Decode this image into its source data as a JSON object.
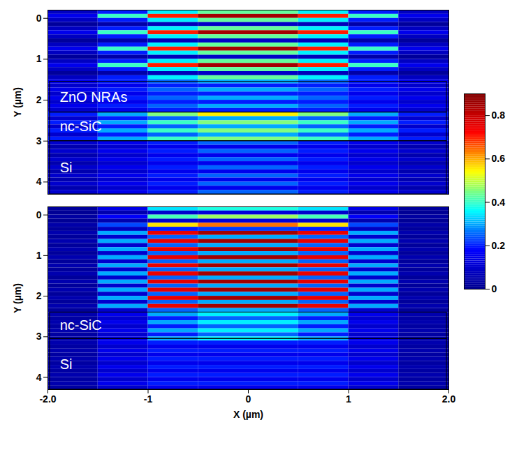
{
  "chart_data": [
    {
      "type": "heatmap",
      "y_label": "Y (µm)",
      "tick_labels": "y",
      "xlim": [
        -2,
        2
      ],
      "ylim": [
        -0.2,
        4.3
      ],
      "xticks": [
        {
          "value": -2,
          "label": "-2.0"
        },
        -1,
        0,
        1,
        {
          "value": 2,
          "label": "2.0"
        }
      ],
      "yticks": [
        0,
        1,
        2,
        3,
        4
      ],
      "x_edges": [
        -2,
        -1.5,
        -1,
        -0.5,
        0,
        0.5,
        1,
        1.5,
        2
      ],
      "y_edges": [
        -0.2,
        -0.1,
        0,
        0.1,
        0.2,
        0.3,
        0.4,
        0.5,
        0.6,
        0.7,
        0.8,
        0.9,
        1,
        1.1,
        1.2,
        1.3,
        1.4,
        1.5,
        1.6,
        1.7,
        1.8,
        1.9,
        2,
        2.1,
        2.2,
        2.3,
        2.4,
        2.5,
        2.6,
        2.7,
        2.8,
        2.9,
        3,
        3.1,
        3.2,
        3.3,
        3.4,
        3.5,
        3.6,
        3.7,
        3.8,
        3.9,
        4,
        4.1,
        4.2,
        4.3
      ],
      "layers": [
        {
          "label": "ZnO NRAs",
          "y0": 1.55,
          "y1": 2.3
        },
        {
          "label": "nc-SiC",
          "y0": 2.3,
          "y1": 3.0
        },
        {
          "label": "Si",
          "y0": 3.0,
          "y1": 4.3
        }
      ],
      "color_bar": {
        "zlim": [
          0,
          0.9
        ],
        "zticks": [
          0,
          0.2,
          0.4,
          0.6,
          0.8
        ]
      },
      "z": [
        [
          0.08,
          0.2,
          0.35,
          0.43,
          0.43,
          0.35,
          0.2,
          0.08
        ],
        [
          0.15,
          0.4,
          0.7,
          0.85,
          0.85,
          0.7,
          0.4,
          0.15
        ],
        [
          0.08,
          0.2,
          0.35,
          0.43,
          0.43,
          0.35,
          0.2,
          0.08
        ],
        [
          0.02,
          0.04,
          0.07,
          0.09,
          0.09,
          0.07,
          0.04,
          0.02
        ],
        [
          0.08,
          0.2,
          0.35,
          0.43,
          0.43,
          0.35,
          0.2,
          0.08
        ],
        [
          0.15,
          0.4,
          0.7,
          0.85,
          0.85,
          0.7,
          0.4,
          0.15
        ],
        [
          0.08,
          0.2,
          0.35,
          0.43,
          0.43,
          0.35,
          0.2,
          0.08
        ],
        [
          0.02,
          0.04,
          0.07,
          0.09,
          0.09,
          0.07,
          0.04,
          0.02
        ],
        [
          0.08,
          0.2,
          0.35,
          0.43,
          0.43,
          0.35,
          0.2,
          0.08
        ],
        [
          0.15,
          0.4,
          0.7,
          0.85,
          0.85,
          0.7,
          0.4,
          0.15
        ],
        [
          0.08,
          0.2,
          0.35,
          0.43,
          0.43,
          0.35,
          0.2,
          0.08
        ],
        [
          0.02,
          0.04,
          0.07,
          0.09,
          0.09,
          0.07,
          0.04,
          0.02
        ],
        [
          0.08,
          0.2,
          0.35,
          0.43,
          0.43,
          0.35,
          0.2,
          0.08
        ],
        [
          0.15,
          0.4,
          0.7,
          0.85,
          0.85,
          0.7,
          0.4,
          0.15
        ],
        [
          0.08,
          0.2,
          0.35,
          0.43,
          0.43,
          0.35,
          0.2,
          0.08
        ],
        [
          0.02,
          0.04,
          0.07,
          0.09,
          0.09,
          0.07,
          0.04,
          0.02
        ],
        [
          0.08,
          0.2,
          0.35,
          0.43,
          0.43,
          0.35,
          0.2,
          0.08
        ],
        [
          0.15,
          0.2,
          0.25,
          0.3,
          0.3,
          0.25,
          0.2,
          0.15
        ],
        [
          0.1,
          0.15,
          0.2,
          0.2,
          0.2,
          0.2,
          0.15,
          0.1
        ],
        [
          0.15,
          0.2,
          0.25,
          0.3,
          0.3,
          0.25,
          0.2,
          0.15
        ],
        [
          0.1,
          0.15,
          0.2,
          0.2,
          0.2,
          0.2,
          0.15,
          0.1
        ],
        [
          0.15,
          0.2,
          0.25,
          0.3,
          0.3,
          0.25,
          0.2,
          0.15
        ],
        [
          0.1,
          0.15,
          0.2,
          0.2,
          0.2,
          0.2,
          0.15,
          0.1
        ],
        [
          0.15,
          0.2,
          0.25,
          0.3,
          0.3,
          0.25,
          0.2,
          0.15
        ],
        [
          0.1,
          0.15,
          0.2,
          0.2,
          0.2,
          0.2,
          0.15,
          0.1
        ],
        [
          0.2,
          0.3,
          0.45,
          0.55,
          0.55,
          0.45,
          0.3,
          0.2
        ],
        [
          0.1,
          0.2,
          0.25,
          0.3,
          0.3,
          0.25,
          0.2,
          0.1
        ],
        [
          0.2,
          0.3,
          0.4,
          0.45,
          0.45,
          0.4,
          0.3,
          0.2
        ],
        [
          0.1,
          0.2,
          0.25,
          0.3,
          0.3,
          0.25,
          0.2,
          0.1
        ],
        [
          0.2,
          0.3,
          0.4,
          0.45,
          0.45,
          0.4,
          0.3,
          0.2
        ],
        [
          0.1,
          0.2,
          0.25,
          0.3,
          0.3,
          0.25,
          0.2,
          0.1
        ],
        [
          0.2,
          0.3,
          0.4,
          0.45,
          0.45,
          0.4,
          0.3,
          0.2
        ],
        [
          0.1,
          0.15,
          0.2,
          0.25,
          0.25,
          0.2,
          0.15,
          0.1
        ],
        [
          0.05,
          0.1,
          0.15,
          0.15,
          0.15,
          0.15,
          0.1,
          0.05
        ],
        [
          0.1,
          0.15,
          0.2,
          0.25,
          0.25,
          0.2,
          0.15,
          0.1
        ],
        [
          0.05,
          0.1,
          0.15,
          0.15,
          0.15,
          0.15,
          0.1,
          0.05
        ],
        [
          0.1,
          0.15,
          0.2,
          0.25,
          0.25,
          0.2,
          0.15,
          0.1
        ],
        [
          0.05,
          0.1,
          0.15,
          0.15,
          0.15,
          0.15,
          0.1,
          0.05
        ],
        [
          0.1,
          0.15,
          0.2,
          0.25,
          0.25,
          0.2,
          0.15,
          0.1
        ],
        [
          0.05,
          0.1,
          0.15,
          0.15,
          0.15,
          0.15,
          0.1,
          0.05
        ],
        [
          0.1,
          0.15,
          0.2,
          0.25,
          0.25,
          0.2,
          0.15,
          0.1
        ],
        [
          0.05,
          0.1,
          0.15,
          0.15,
          0.15,
          0.15,
          0.1,
          0.05
        ],
        [
          0.1,
          0.15,
          0.2,
          0.25,
          0.25,
          0.2,
          0.15,
          0.1
        ],
        [
          0.05,
          0.1,
          0.15,
          0.15,
          0.15,
          0.15,
          0.1,
          0.05
        ],
        [
          0.1,
          0.15,
          0.2,
          0.25,
          0.25,
          0.2,
          0.15,
          0.1
        ]
      ]
    },
    {
      "type": "heatmap",
      "x_label": "X (µm)",
      "y_label": "Y (µm)",
      "xlim": [
        -2,
        2
      ],
      "ylim": [
        -0.2,
        4.3
      ],
      "xticks": [
        {
          "value": -2,
          "label": "-2.0"
        },
        -1,
        0,
        1,
        {
          "value": 2,
          "label": "2.0"
        }
      ],
      "yticks": [
        0,
        1,
        2,
        3,
        4
      ],
      "x_edges": [
        -2,
        -1.5,
        -1,
        -0.5,
        0,
        0.5,
        1,
        1.5,
        2
      ],
      "y_edges": [
        -0.2,
        -0.1,
        0,
        0.1,
        0.2,
        0.3,
        0.4,
        0.5,
        0.6,
        0.7,
        0.8,
        0.9,
        1,
        1.1,
        1.2,
        1.3,
        1.4,
        1.5,
        1.6,
        1.7,
        1.8,
        1.9,
        2,
        2.1,
        2.2,
        2.3,
        2.4,
        2.5,
        2.6,
        2.7,
        2.8,
        2.9,
        3,
        3.1,
        3.2,
        3.3,
        3.4,
        3.5,
        3.6,
        3.7,
        3.8,
        3.9,
        4,
        4.1,
        4.2,
        4.3
      ],
      "layers": [
        {
          "label": "nc-SiC",
          "y0": 2.4,
          "y1": 3.05
        },
        {
          "label": "Si",
          "y0": 3.05,
          "y1": 4.3
        }
      ],
      "z": [
        [
          0.02,
          0.14,
          0.34,
          0.38,
          0.38,
          0.34,
          0.14,
          0.02
        ],
        [
          0.01,
          0.05,
          0.1,
          0.12,
          0.12,
          0.1,
          0.05,
          0.01
        ],
        [
          0.03,
          0.17,
          0.41,
          0.47,
          0.47,
          0.41,
          0.17,
          0.03
        ],
        [
          0.01,
          0.05,
          0.1,
          0.12,
          0.12,
          0.1,
          0.05,
          0.01
        ],
        [
          0.04,
          0.23,
          0.56,
          0.64,
          0.64,
          0.56,
          0.23,
          0.04
        ],
        [
          0.02,
          0.08,
          0.2,
          0.22,
          0.22,
          0.2,
          0.08,
          0.02
        ],
        [
          0.05,
          0.3,
          0.75,
          0.85,
          0.85,
          0.75,
          0.3,
          0.05
        ],
        [
          0.02,
          0.1,
          0.25,
          0.3,
          0.3,
          0.25,
          0.1,
          0.02
        ],
        [
          0.05,
          0.3,
          0.75,
          0.85,
          0.85,
          0.75,
          0.3,
          0.05
        ],
        [
          0.02,
          0.1,
          0.25,
          0.3,
          0.3,
          0.25,
          0.1,
          0.02
        ],
        [
          0.05,
          0.3,
          0.75,
          0.85,
          0.85,
          0.75,
          0.3,
          0.05
        ],
        [
          0.02,
          0.1,
          0.25,
          0.3,
          0.3,
          0.25,
          0.1,
          0.02
        ],
        [
          0.05,
          0.3,
          0.75,
          0.85,
          0.85,
          0.75,
          0.3,
          0.05
        ],
        [
          0.02,
          0.1,
          0.25,
          0.3,
          0.3,
          0.25,
          0.1,
          0.02
        ],
        [
          0.05,
          0.3,
          0.75,
          0.85,
          0.85,
          0.75,
          0.3,
          0.05
        ],
        [
          0.02,
          0.1,
          0.25,
          0.3,
          0.3,
          0.25,
          0.1,
          0.02
        ],
        [
          0.05,
          0.3,
          0.75,
          0.85,
          0.85,
          0.75,
          0.3,
          0.05
        ],
        [
          0.02,
          0.1,
          0.25,
          0.3,
          0.3,
          0.25,
          0.1,
          0.02
        ],
        [
          0.05,
          0.3,
          0.75,
          0.85,
          0.85,
          0.75,
          0.3,
          0.05
        ],
        [
          0.02,
          0.1,
          0.25,
          0.3,
          0.3,
          0.25,
          0.1,
          0.02
        ],
        [
          0.05,
          0.3,
          0.75,
          0.85,
          0.85,
          0.75,
          0.3,
          0.05
        ],
        [
          0.02,
          0.1,
          0.25,
          0.3,
          0.3,
          0.25,
          0.1,
          0.02
        ],
        [
          0.05,
          0.3,
          0.75,
          0.85,
          0.85,
          0.75,
          0.3,
          0.05
        ],
        [
          0.02,
          0.1,
          0.25,
          0.3,
          0.3,
          0.25,
          0.1,
          0.02
        ],
        [
          0.05,
          0.3,
          0.75,
          0.85,
          0.85,
          0.75,
          0.3,
          0.05
        ],
        [
          0.02,
          0.1,
          0.25,
          0.3,
          0.3,
          0.25,
          0.1,
          0.02
        ],
        [
          0.05,
          0.15,
          0.3,
          0.35,
          0.35,
          0.3,
          0.15,
          0.05
        ],
        [
          0.03,
          0.1,
          0.2,
          0.25,
          0.25,
          0.2,
          0.1,
          0.03
        ],
        [
          0.05,
          0.15,
          0.3,
          0.35,
          0.35,
          0.3,
          0.15,
          0.05
        ],
        [
          0.03,
          0.1,
          0.2,
          0.25,
          0.25,
          0.2,
          0.1,
          0.03
        ],
        [
          0.05,
          0.15,
          0.3,
          0.35,
          0.35,
          0.3,
          0.15,
          0.05
        ],
        [
          0.03,
          0.1,
          0.2,
          0.25,
          0.25,
          0.2,
          0.1,
          0.03
        ],
        [
          0.05,
          0.15,
          0.3,
          0.35,
          0.35,
          0.3,
          0.15,
          0.05
        ],
        [
          0.05,
          0.15,
          0.2,
          0.2,
          0.2,
          0.2,
          0.15,
          0.05
        ],
        [
          0.03,
          0.1,
          0.15,
          0.15,
          0.15,
          0.15,
          0.1,
          0.03
        ],
        [
          0.05,
          0.15,
          0.2,
          0.2,
          0.2,
          0.2,
          0.15,
          0.05
        ],
        [
          0.03,
          0.1,
          0.15,
          0.15,
          0.15,
          0.15,
          0.1,
          0.03
        ],
        [
          0.05,
          0.15,
          0.2,
          0.2,
          0.2,
          0.2,
          0.15,
          0.05
        ],
        [
          0.03,
          0.1,
          0.15,
          0.15,
          0.15,
          0.15,
          0.1,
          0.03
        ],
        [
          0.05,
          0.15,
          0.2,
          0.2,
          0.2,
          0.2,
          0.15,
          0.05
        ],
        [
          0.03,
          0.1,
          0.15,
          0.15,
          0.15,
          0.15,
          0.1,
          0.03
        ],
        [
          0.05,
          0.15,
          0.2,
          0.2,
          0.2,
          0.2,
          0.15,
          0.05
        ],
        [
          0.03,
          0.1,
          0.15,
          0.15,
          0.15,
          0.15,
          0.1,
          0.03
        ],
        [
          0.05,
          0.15,
          0.2,
          0.2,
          0.2,
          0.2,
          0.15,
          0.05
        ],
        [
          0.03,
          0.1,
          0.15,
          0.15,
          0.15,
          0.15,
          0.1,
          0.03
        ]
      ]
    }
  ]
}
